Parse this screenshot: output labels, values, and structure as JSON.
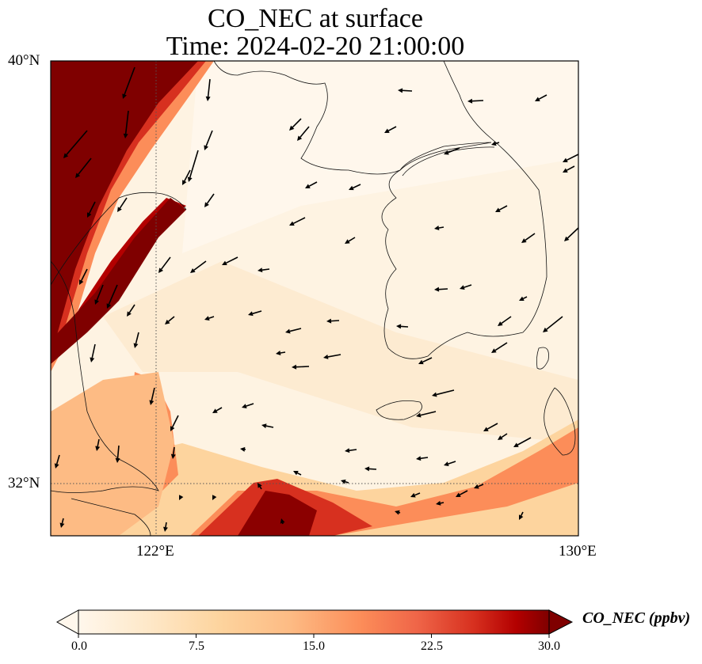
{
  "title": {
    "line1": "CO_NEC at surface",
    "line2": "Time: 2024-02-20 21:00:00"
  },
  "map": {
    "variable": "CO_NEC",
    "level": "surface",
    "extent": {
      "lon": [
        119.5,
        130
      ],
      "lat": [
        31,
        40
      ]
    },
    "lat_ticks": [
      {
        "value": 40,
        "label": "40°N"
      },
      {
        "value": 32,
        "label": "32°N"
      }
    ],
    "lon_ticks": [
      {
        "value": 122,
        "label": "122°E"
      },
      {
        "value": 130,
        "label": "130°E"
      }
    ],
    "gridlines": {
      "lon": [
        122
      ],
      "lat": [
        32
      ],
      "style": "dotted"
    },
    "high_concentration_regions": [
      "northwest inland band (>30 ppbv)",
      "plume over sea near 32°N 124°E",
      "southern band along 31.5–33°N toward 130°E"
    ],
    "wind_direction_summary": "predominantly northwesterly/westerly wind vectors"
  },
  "colorbar": {
    "label": "CO_NEC (ppbv)",
    "min": 0.0,
    "max": 30.0,
    "colormap": "OrRd",
    "extend": "both",
    "ticks": [
      {
        "value": 0.0,
        "label": "0.0"
      },
      {
        "value": 7.5,
        "label": "7.5"
      },
      {
        "value": 15.0,
        "label": "15.0"
      },
      {
        "value": 22.5,
        "label": "22.5"
      },
      {
        "value": 30.0,
        "label": "30.0"
      }
    ]
  },
  "colors": {
    "low": "#fff7ec",
    "mid": "#fc8d59",
    "high": "#7f0000"
  }
}
